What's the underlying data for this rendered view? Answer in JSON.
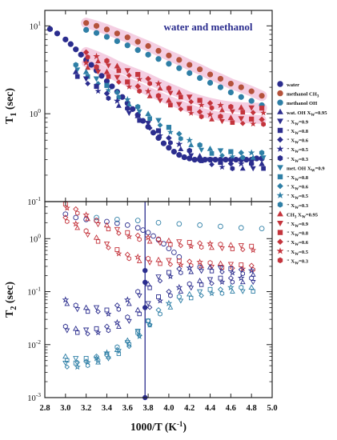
{
  "figure": {
    "title": "water and methanol",
    "xlabel": "1000/T (K",
    "xlabel_sup": "-1",
    "xlabel_close": ")",
    "top_ylabel_main": "T",
    "top_ylabel_sub": "1",
    "top_ylabel_unit": " (sec)",
    "bottom_ylabel_main": "T",
    "bottom_ylabel_sub": "2",
    "bottom_ylabel_unit": " (sec)",
    "x_ticks": [
      "2.8",
      "3.0",
      "3.2",
      "3.4",
      "3.6",
      "3.8",
      "4.0",
      "4.2",
      "4.4",
      "4.6",
      "4.8",
      "5.0"
    ],
    "top_y_ticks": [
      {
        "base": "10",
        "exp": "1"
      },
      {
        "base": "10",
        "exp": "0"
      },
      {
        "base": "10",
        "exp": "-1"
      }
    ],
    "bottom_y_ticks": [
      {
        "base": "10",
        "exp": "0"
      },
      {
        "base": "10",
        "exp": "-1"
      },
      {
        "base": "10",
        "exp": "-2"
      },
      {
        "base": "10",
        "exp": "-3"
      }
    ],
    "vertical_marker_x": 3.77,
    "colors": {
      "navy": "#2b2d8e",
      "red": "#c4343c",
      "rust": "#b5523b",
      "teal": "#2e7fa6",
      "pink_band": "#f2c6dd"
    }
  },
  "legend": [
    {
      "marker": "circle",
      "color": "#2b2d8e",
      "text": "water",
      "sub": ""
    },
    {
      "marker": "circle",
      "color": "#b5523b",
      "text": "methanol CH",
      "sub": "3"
    },
    {
      "marker": "circle",
      "color": "#2e7fa6",
      "text": "methanol OH",
      "sub": ""
    },
    {
      "marker": "triangle-up",
      "color": "#2b2d8e",
      "text": "wat. OH  X",
      "sub": "W",
      "tail": "=0.95"
    },
    {
      "marker": "triangle-down",
      "color": "#2b2d8e",
      "text": "\"          X",
      "sub": "W",
      "tail": "=0.9"
    },
    {
      "marker": "square",
      "color": "#2b2d8e",
      "text": "\"          X",
      "sub": "W",
      "tail": "=0.8"
    },
    {
      "marker": "diamond",
      "color": "#2b2d8e",
      "text": "\"          X",
      "sub": "W",
      "tail": "=0.6"
    },
    {
      "marker": "star",
      "color": "#2b2d8e",
      "text": "\"          X",
      "sub": "W",
      "tail": "=0.5"
    },
    {
      "marker": "hexagon",
      "color": "#2b2d8e",
      "text": "\"          X",
      "sub": "W",
      "tail": "=0.3"
    },
    {
      "marker": "triangle-down",
      "color": "#2e7fa6",
      "text": "met. OH X",
      "sub": "W",
      "tail": "=0.9"
    },
    {
      "marker": "square",
      "color": "#2e7fa6",
      "text": "\"          X",
      "sub": "W",
      "tail": "=0.8"
    },
    {
      "marker": "diamond",
      "color": "#2e7fa6",
      "text": "\"          X",
      "sub": "W",
      "tail": "=0.6"
    },
    {
      "marker": "star",
      "color": "#2e7fa6",
      "text": "\"          X",
      "sub": "W",
      "tail": "=0.5"
    },
    {
      "marker": "hexagon",
      "color": "#2e7fa6",
      "text": "\"          X",
      "sub": "W",
      "tail": "=0.3"
    },
    {
      "marker": "triangle-up",
      "color": "#c4343c",
      "text": "CH",
      "sub": "3",
      "tail": " X",
      "sub2": "W",
      "tail2": "=0.95"
    },
    {
      "marker": "triangle-down",
      "color": "#c4343c",
      "text": "\"          X",
      "sub": "W",
      "tail": "=0.9"
    },
    {
      "marker": "square",
      "color": "#c4343c",
      "text": "\"          X",
      "sub": "W",
      "tail": "=0.8"
    },
    {
      "marker": "diamond",
      "color": "#c4343c",
      "text": "\"          X",
      "sub": "W",
      "tail": "=0.6"
    },
    {
      "marker": "star",
      "color": "#c4343c",
      "text": "\"          X",
      "sub": "W",
      "tail": "=0.5"
    },
    {
      "marker": "hexagon",
      "color": "#c4343c",
      "text": "\"          X",
      "sub": "W",
      "tail": "=0.3"
    }
  ],
  "chart_data": [
    {
      "type": "scatter",
      "panel": "top",
      "ylabel": "T1 (sec)",
      "xlabel": "1000/T (K-1)",
      "xlim": [
        2.8,
        5.0
      ],
      "ylim": [
        0.1,
        15
      ],
      "yscale": "log",
      "series": [
        {
          "name": "water",
          "marker": "circle",
          "color": "#2b2d8e",
          "filled": true,
          "x": [
            2.85,
            2.92,
            3.0,
            3.05,
            3.1,
            3.15,
            3.2,
            3.25,
            3.3,
            3.35,
            3.4,
            3.45,
            3.5,
            3.55,
            3.6,
            3.65,
            3.7,
            3.75,
            3.8,
            3.85,
            3.9,
            3.95,
            4.0,
            4.05,
            4.1,
            4.15,
            4.2,
            4.25,
            4.3,
            4.35,
            4.4,
            4.45,
            4.5,
            4.55,
            4.6,
            4.65,
            4.7,
            4.75,
            4.8,
            4.85,
            4.9
          ],
          "y": [
            9.2,
            8.2,
            7.0,
            6.2,
            5.4,
            4.7,
            4.1,
            3.6,
            3.1,
            2.7,
            2.35,
            2.05,
            1.78,
            1.55,
            1.32,
            1.13,
            0.97,
            0.83,
            0.71,
            0.61,
            0.53,
            0.46,
            0.41,
            0.37,
            0.34,
            0.32,
            0.31,
            0.3,
            0.3,
            0.3,
            0.3,
            0.3,
            0.3,
            0.3,
            0.3,
            0.3,
            0.3,
            0.3,
            0.3,
            0.31,
            0.31
          ]
        },
        {
          "name": "methanol CH3",
          "marker": "circle",
          "color": "#b5523b",
          "filled": true,
          "x": [
            3.2,
            3.3,
            3.4,
            3.5,
            3.6,
            3.7,
            3.8,
            3.9,
            4.0,
            4.1,
            4.2,
            4.3,
            4.4,
            4.5,
            4.6,
            4.7,
            4.8,
            4.9
          ],
          "y": [
            10.8,
            10.0,
            9.1,
            8.2,
            7.4,
            6.6,
            5.9,
            5.2,
            4.6,
            4.1,
            3.6,
            3.2,
            2.8,
            2.5,
            2.2,
            2.0,
            1.8,
            1.6
          ]
        },
        {
          "name": "methanol OH",
          "marker": "circle",
          "color": "#2e7fa6",
          "filled": true,
          "x": [
            3.2,
            3.3,
            3.4,
            3.5,
            3.6,
            3.7,
            3.8,
            3.9,
            4.0,
            4.1,
            4.2,
            4.3,
            4.4,
            4.5,
            4.6,
            4.7,
            4.8,
            4.9
          ],
          "y": [
            9.0,
            8.3,
            7.5,
            6.7,
            6.0,
            5.3,
            4.7,
            4.2,
            3.7,
            3.3,
            2.9,
            2.55,
            2.25,
            2.0,
            1.75,
            1.55,
            1.4,
            1.25
          ]
        },
        {
          "name": "CH3 mixtures",
          "marker": "mixed",
          "color": "#c4343c",
          "filled": true,
          "x": [
            3.2,
            3.3,
            3.4,
            3.5,
            3.6,
            3.7,
            3.8,
            3.9,
            4.0,
            4.1,
            4.2,
            4.3,
            4.4,
            4.5,
            4.6,
            4.7,
            4.8,
            4.9
          ],
          "y": [
            5.0,
            4.5,
            4.0,
            3.5,
            3.1,
            2.8,
            2.5,
            2.2,
            1.95,
            1.75,
            1.55,
            1.42,
            1.32,
            1.25,
            1.2,
            1.18,
            1.17,
            1.16
          ]
        },
        {
          "name": "mixtures CH3 lower",
          "marker": "mixed",
          "color": "#c4343c",
          "filled": true,
          "x": [
            3.2,
            3.3,
            3.4,
            3.5,
            3.6,
            3.7,
            3.8,
            3.9,
            4.0,
            4.1,
            4.2,
            4.3,
            4.4,
            4.5,
            4.6,
            4.7,
            4.8,
            4.9
          ],
          "y": [
            3.8,
            3.4,
            3.0,
            2.6,
            2.3,
            2.05,
            1.8,
            1.6,
            1.42,
            1.28,
            1.15,
            1.05,
            0.98,
            0.93,
            0.9,
            0.88,
            0.87,
            0.86
          ]
        },
        {
          "name": "OH mixtures",
          "marker": "mixed",
          "color": "#2e7fa6",
          "filled": true,
          "x": [
            3.1,
            3.2,
            3.3,
            3.4,
            3.5,
            3.6,
            3.7,
            3.8,
            3.9,
            4.0,
            4.1,
            4.2,
            4.3,
            4.4,
            4.5,
            4.6,
            4.7,
            4.8,
            4.9
          ],
          "y": [
            3.6,
            3.0,
            2.5,
            2.1,
            1.75,
            1.45,
            1.2,
            1.0,
            0.84,
            0.7,
            0.59,
            0.5,
            0.44,
            0.4,
            0.38,
            0.37,
            0.36,
            0.36,
            0.36
          ]
        },
        {
          "name": "OH mixtures lower",
          "marker": "mixed",
          "color": "#2b2d8e",
          "filled": true,
          "x": [
            3.1,
            3.2,
            3.3,
            3.4,
            3.5,
            3.6,
            3.7,
            3.8,
            3.9,
            4.0,
            4.1,
            4.2,
            4.3,
            4.4,
            4.5,
            4.6,
            4.7,
            4.8,
            4.9
          ],
          "y": [
            3.0,
            2.5,
            2.05,
            1.7,
            1.4,
            1.15,
            0.95,
            0.78,
            0.64,
            0.53,
            0.45,
            0.38,
            0.33,
            0.3,
            0.28,
            0.27,
            0.27,
            0.27,
            0.27
          ]
        }
      ]
    },
    {
      "type": "scatter",
      "panel": "bottom",
      "ylabel": "T2 (sec)",
      "xlabel": "1000/T (K-1)",
      "xlim": [
        2.8,
        5.0
      ],
      "ylim": [
        0.001,
        5
      ],
      "yscale": "log",
      "series": [
        {
          "name": "water",
          "marker": "circle",
          "color": "#2b2d8e",
          "filled": false,
          "x": [
            3.0,
            3.1,
            3.2,
            3.3,
            3.4,
            3.5,
            3.6,
            3.7,
            3.75,
            3.8,
            3.85,
            3.9,
            3.95,
            4.0,
            4.05,
            4.1
          ],
          "y": [
            2.9,
            2.5,
            2.3,
            2.2,
            2.1,
            1.95,
            1.8,
            1.6,
            1.45,
            1.3,
            1.12,
            0.95,
            0.8,
            0.65,
            0.55,
            0.45
          ]
        },
        {
          "name": "methanol OH / CH3",
          "marker": "circle",
          "color": "#2e7fa6",
          "filled": false,
          "x": [
            3.3,
            3.5,
            3.7,
            3.9,
            4.1,
            4.3,
            4.5,
            4.7,
            4.9
          ],
          "y": [
            2.5,
            2.3,
            2.2,
            2.0,
            1.9,
            1.8,
            1.7,
            1.6,
            1.55
          ]
        },
        {
          "name": "CH3 mixtures",
          "marker": "mixed",
          "color": "#c4343c",
          "filled": false,
          "x": [
            3.0,
            3.1,
            3.2,
            3.3,
            3.4,
            3.5,
            3.6,
            3.7,
            3.8,
            3.9,
            4.0,
            4.1,
            4.2,
            4.3,
            4.4,
            4.5,
            4.6,
            4.7,
            4.8
          ],
          "y": [
            4.5,
            3.6,
            2.8,
            2.2,
            1.8,
            1.5,
            1.3,
            1.15,
            1.05,
            0.98,
            0.92,
            0.88,
            0.85,
            0.82,
            0.8,
            0.78,
            0.76,
            0.74,
            0.72
          ]
        },
        {
          "name": "CH3 mixtures lower",
          "marker": "mixed",
          "color": "#c4343c",
          "filled": false,
          "x": [
            3.0,
            3.1,
            3.2,
            3.3,
            3.4,
            3.5,
            3.6,
            3.7,
            3.8,
            3.9,
            4.0,
            4.1,
            4.2,
            4.3,
            4.4,
            4.5,
            4.6,
            4.7,
            4.8
          ],
          "y": [
            2.5,
            1.9,
            1.4,
            1.05,
            0.8,
            0.62,
            0.5,
            0.45,
            0.42,
            0.4,
            0.39,
            0.38,
            0.37,
            0.36,
            0.35,
            0.34,
            0.33,
            0.32,
            0.31
          ]
        },
        {
          "name": "OH mixtures upper",
          "marker": "mixed",
          "color": "#2b2d8e",
          "filled": false,
          "x": [
            3.0,
            3.1,
            3.2,
            3.3,
            3.4,
            3.5,
            3.6,
            3.7,
            3.8,
            3.9,
            4.0,
            4.1,
            4.2,
            4.3,
            4.4,
            4.5,
            4.6,
            4.7,
            4.8
          ],
          "y": [
            0.07,
            0.055,
            0.05,
            0.05,
            0.045,
            0.055,
            0.07,
            0.1,
            0.14,
            0.19,
            0.23,
            0.27,
            0.28,
            0.29,
            0.29,
            0.28,
            0.27,
            0.26,
            0.25
          ]
        },
        {
          "name": "OH mixtures mid",
          "marker": "mixed",
          "color": "#2b2d8e",
          "filled": false,
          "x": [
            3.0,
            3.1,
            3.2,
            3.3,
            3.4,
            3.5,
            3.6,
            3.7,
            3.8,
            3.9,
            4.0,
            4.1,
            4.2,
            4.3,
            4.4,
            4.5,
            4.6,
            4.7,
            4.8
          ],
          "y": [
            0.022,
            0.02,
            0.019,
            0.02,
            0.022,
            0.026,
            0.033,
            0.045,
            0.06,
            0.08,
            0.1,
            0.12,
            0.14,
            0.16,
            0.17,
            0.18,
            0.18,
            0.18,
            0.18
          ]
        },
        {
          "name": "OH mixtures lower",
          "marker": "mixed",
          "color": "#2e7fa6",
          "filled": false,
          "x": [
            3.0,
            3.1,
            3.2,
            3.3,
            3.4,
            3.5,
            3.6,
            3.7,
            3.8,
            3.9,
            4.0,
            4.1,
            4.2,
            4.3,
            4.4,
            4.5,
            4.6,
            4.7,
            4.8
          ],
          "y": [
            0.006,
            0.0055,
            0.0055,
            0.006,
            0.007,
            0.009,
            0.012,
            0.018,
            0.028,
            0.045,
            0.06,
            0.08,
            0.09,
            0.1,
            0.11,
            0.11,
            0.12,
            0.12,
            0.12
          ]
        },
        {
          "name": "OH mixtures lowest",
          "marker": "mixed",
          "color": "#2e7fa6",
          "filled": false,
          "x": [
            3.0,
            3.1,
            3.2,
            3.3,
            3.4,
            3.5,
            3.6,
            3.7,
            3.8
          ],
          "y": [
            0.0045,
            0.0045,
            0.0048,
            0.0055,
            0.0065,
            0.008,
            0.011,
            0.017,
            0.028
          ]
        },
        {
          "name": "marker points",
          "marker": "circle",
          "color": "#2b2d8e",
          "filled": true,
          "x": [
            3.77,
            3.77,
            3.77,
            3.77
          ],
          "y": [
            0.25,
            0.15,
            0.05,
            0.001
          ]
        }
      ]
    }
  ]
}
